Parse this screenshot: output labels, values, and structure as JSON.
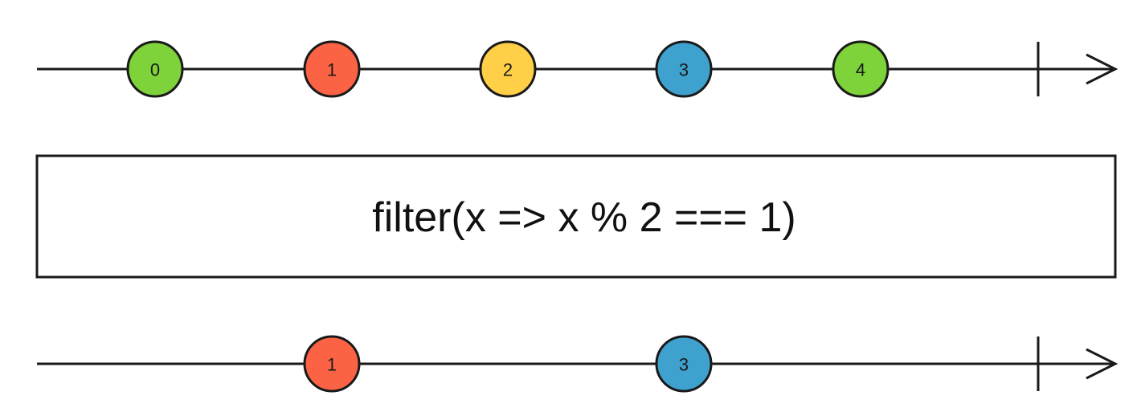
{
  "operator": {
    "label": "filter(x => x % 2 === 1)"
  },
  "input_stream": {
    "marbles": [
      {
        "label": "0",
        "color": "#7ed23a"
      },
      {
        "label": "1",
        "color": "#fb6344"
      },
      {
        "label": "2",
        "color": "#ffcf48"
      },
      {
        "label": "3",
        "color": "#3ea1ce"
      },
      {
        "label": "4",
        "color": "#7ed23a"
      }
    ],
    "completed": true
  },
  "output_stream": {
    "marbles": [
      {
        "label": "1",
        "color": "#fb6344"
      },
      {
        "label": "3",
        "color": "#3ea1ce"
      }
    ],
    "completed": true
  }
}
